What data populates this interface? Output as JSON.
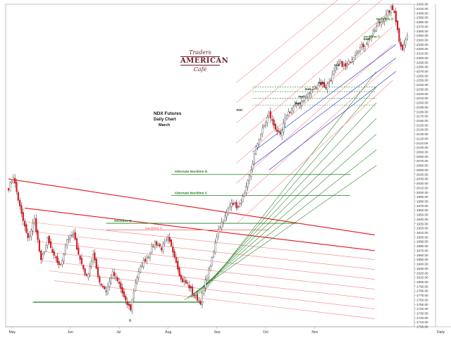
{
  "chart_data": {
    "type": "candlestick",
    "title": "NDX  Futures",
    "subtitle": "Daily Chart",
    "contract": "March",
    "ylim": [
      1700,
      2420
    ],
    "y_ticks": [
      2420,
      2410,
      2400,
      2390,
      2380,
      2370,
      2360,
      2350,
      2340,
      2330,
      2320,
      2310,
      2300,
      2290,
      2280,
      2270,
      2260,
      2250,
      2240,
      2230,
      2220,
      2210,
      2200,
      2190,
      2180,
      2170,
      2160,
      2150,
      2140,
      2130,
      2120,
      2110,
      2100,
      2090,
      2080,
      2070,
      2060,
      2050,
      2040,
      2030,
      2020,
      2010,
      2000,
      1990,
      1980,
      1970,
      1960,
      1950,
      1940,
      1930,
      1920,
      1910,
      1900,
      1890,
      1880,
      1870,
      1860,
      1850,
      1840,
      1830,
      1820,
      1810,
      1800,
      1790,
      1780,
      1770,
      1760,
      1750,
      1740,
      1730,
      1720,
      1710,
      1700
    ],
    "x_labels": [
      "May",
      "Jun",
      "Jul",
      "Aug",
      "Sep",
      "Oct",
      "Nov",
      "Daily"
    ],
    "waypoints": [
      [
        0,
        2010
      ],
      [
        3,
        2035
      ],
      [
        8,
        1950
      ],
      [
        12,
        1895
      ],
      [
        16,
        1940
      ],
      [
        20,
        1845
      ],
      [
        24,
        1895
      ],
      [
        28,
        1855
      ],
      [
        32,
        1835
      ],
      [
        36,
        1895
      ],
      [
        40,
        1905
      ],
      [
        44,
        1850
      ],
      [
        48,
        1810
      ],
      [
        52,
        1860
      ],
      [
        56,
        1800
      ],
      [
        60,
        1780
      ],
      [
        64,
        1820
      ],
      [
        68,
        1795
      ],
      [
        72,
        1755
      ],
      [
        75,
        1740
      ],
      [
        78,
        1800
      ],
      [
        82,
        1840
      ],
      [
        86,
        1860
      ],
      [
        90,
        1890
      ],
      [
        94,
        1875
      ],
      [
        98,
        1895
      ],
      [
        102,
        1860
      ],
      [
        106,
        1805
      ],
      [
        110,
        1795
      ],
      [
        114,
        1770
      ],
      [
        118,
        1755
      ],
      [
        121,
        1800
      ],
      [
        125,
        1850
      ],
      [
        129,
        1920
      ],
      [
        133,
        1945
      ],
      [
        137,
        1980
      ],
      [
        141,
        1965
      ],
      [
        145,
        1995
      ],
      [
        149,
        2050
      ],
      [
        152,
        2100
      ],
      [
        156,
        2140
      ],
      [
        160,
        2175
      ],
      [
        163,
        2150
      ],
      [
        167,
        2125
      ],
      [
        171,
        2175
      ],
      [
        175,
        2190
      ],
      [
        179,
        2200
      ],
      [
        183,
        2215
      ],
      [
        187,
        2230
      ],
      [
        191,
        2245
      ],
      [
        195,
        2235
      ],
      [
        199,
        2260
      ],
      [
        203,
        2290
      ],
      [
        207,
        2280
      ],
      [
        211,
        2300
      ],
      [
        215,
        2320
      ],
      [
        219,
        2330
      ],
      [
        223,
        2350
      ],
      [
        227,
        2375
      ],
      [
        231,
        2390
      ],
      [
        235,
        2410
      ],
      [
        237,
        2405
      ],
      [
        240,
        2340
      ],
      [
        242,
        2320
      ],
      [
        245,
        2350
      ]
    ],
    "annotations": [
      {
        "text": "Neckline  A"
      },
      {
        "text": "Neckline  B"
      },
      {
        "text": "Alternate Neckline  C"
      },
      {
        "text": "Alternate Neckline  D"
      },
      {
        "text": "neckline  C"
      },
      {
        "text": "Neckline  D"
      },
      {
        "text": "met"
      },
      {
        "text": "met"
      },
      {
        "text": "met"
      },
      {
        "text": "met"
      },
      {
        "text": "met"
      },
      {
        "text": "met"
      },
      {
        "text": "met"
      },
      {
        "text": "B"
      }
    ],
    "logo": {
      "line1": "Traders",
      "line2": "AMERICAN",
      "line3": "Café"
    }
  },
  "colors": {
    "up": "#ffffff",
    "down": "#d8161e",
    "wick": "#222222",
    "neckline_red": "#e2141b",
    "channel_red": "#f1817d",
    "green": "#1e7d1e",
    "blue": "#2424c8",
    "annotation": "#1e7d1e"
  }
}
